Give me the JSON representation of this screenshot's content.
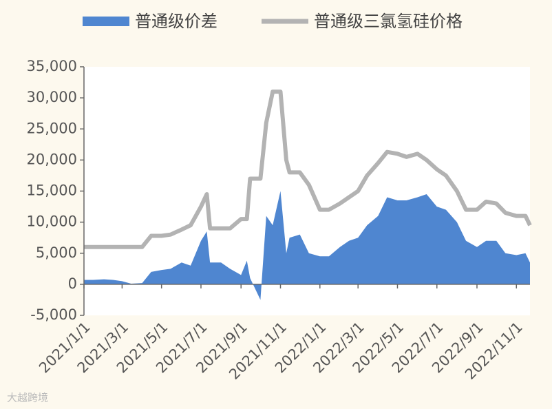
{
  "chart_data": {
    "type": "combo",
    "x": [
      "2021/1/1",
      "2021/1/15",
      "2021/2/1",
      "2021/2/15",
      "2021/3/1",
      "2021/3/15",
      "2021/4/1",
      "2021/4/15",
      "2021/5/1",
      "2021/5/15",
      "2021/6/1",
      "2021/6/15",
      "2021/7/1",
      "2021/7/10",
      "2021/7/15",
      "2021/8/1",
      "2021/8/15",
      "2021/9/1",
      "2021/9/10",
      "2021/9/15",
      "2021/10/1",
      "2021/10/10",
      "2021/10/20",
      "2021/11/1",
      "2021/11/10",
      "2021/11/15",
      "2021/12/1",
      "2021/12/15",
      "2022/1/1",
      "2022/1/15",
      "2022/2/1",
      "2022/2/15",
      "2022/3/1",
      "2022/3/15",
      "2022/4/1",
      "2022/4/15",
      "2022/5/1",
      "2022/5/15",
      "2022/6/1",
      "2022/6/15",
      "2022/7/1",
      "2022/7/15",
      "2022/8/1",
      "2022/8/15",
      "2022/9/1",
      "2022/9/15",
      "2022/10/1",
      "2022/10/15",
      "2022/11/1",
      "2022/11/15",
      "2022/11/22"
    ],
    "series": [
      {
        "name": "普通级价差",
        "kind": "area",
        "color": "#4f86d0",
        "values": [
          700,
          700,
          800,
          700,
          500,
          100,
          200,
          2000,
          2300,
          2500,
          3500,
          3000,
          7000,
          8500,
          3500,
          3500,
          2500,
          1500,
          3800,
          1000,
          -2500,
          11000,
          9500,
          15000,
          5000,
          7500,
          8000,
          5000,
          4500,
          4500,
          6000,
          7000,
          7500,
          9500,
          11000,
          14000,
          13500,
          13500,
          14000,
          14500,
          12500,
          12000,
          10000,
          7000,
          6000,
          7000,
          7000,
          5000,
          4700,
          5000,
          3500
        ]
      },
      {
        "name": "普通级三氯氢硅价格",
        "kind": "line",
        "color": "#b3b3b3",
        "values": [
          6000,
          6000,
          6000,
          6000,
          6000,
          6000,
          6000,
          7800,
          7800,
          8000,
          8800,
          9500,
          12500,
          14500,
          9000,
          9000,
          9000,
          10500,
          10500,
          17000,
          17000,
          26000,
          31000,
          31000,
          20000,
          18000,
          18000,
          16000,
          12000,
          12000,
          13000,
          14000,
          15000,
          17500,
          19500,
          21300,
          21000,
          20500,
          21000,
          20000,
          18500,
          17500,
          15000,
          12000,
          12000,
          13300,
          13000,
          11500,
          11000,
          11000,
          9500
        ]
      }
    ],
    "xlim": [
      "2021/1/1",
      "2022/11/22"
    ],
    "xticks": [
      "2021/1/1",
      "2021/3/1",
      "2021/5/1",
      "2021/7/1",
      "2021/9/1",
      "2021/11/1",
      "2022/1/1",
      "2022/3/1",
      "2022/5/1",
      "2022/7/1",
      "2022/9/1",
      "2022/11/1"
    ],
    "ylim": [
      -5000,
      35000
    ],
    "yticks": [
      {
        "value": -5000,
        "label": "-5,000"
      },
      0,
      {
        "value": 5000,
        "label": "5,000"
      },
      {
        "value": 10000,
        "label": "10,000"
      },
      {
        "value": 15000,
        "label": "15,000"
      },
      {
        "value": 20000,
        "label": "20,000"
      },
      {
        "value": 25000,
        "label": "25,000"
      },
      {
        "value": 30000,
        "label": "30,000"
      },
      {
        "value": 35000,
        "label": "35,000"
      }
    ],
    "watermark": "大越跨境"
  }
}
